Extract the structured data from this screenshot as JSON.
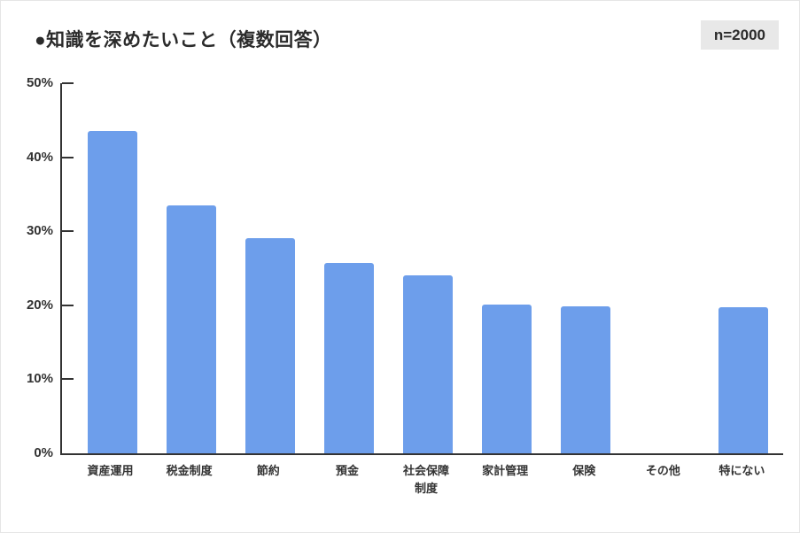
{
  "header": {
    "title": "●知識を深めたいこと（複数回答）",
    "sample_badge": "n=2000"
  },
  "chart_data": {
    "type": "bar",
    "title": "知識を深めたいこと（複数回答）",
    "subtitle": "",
    "categories": [
      "資産運用",
      "税金制度",
      "節約",
      "預金",
      "社会保障制度",
      "家計管理",
      "保険",
      "その他",
      "特にない"
    ],
    "values": [
      43.5,
      33.5,
      29.1,
      25.7,
      24.0,
      20.1,
      19.8,
      0.0,
      19.7
    ],
    "xlabel": "",
    "ylabel": "%",
    "ylim": [
      0,
      50
    ],
    "ytick_step": 10,
    "ytick_labels": [
      "0%",
      "10%",
      "20%",
      "30%",
      "40%",
      "50%"
    ],
    "grid": false,
    "legend_position": "none",
    "bar_color": "#6d9eeb",
    "axis_color": "#333333",
    "sample_size": "n=2000"
  },
  "colors": {
    "bar": "#6d9eeb",
    "axis": "#333333",
    "badge_bg": "#e8e8e8",
    "text": "#2b2b2b"
  }
}
